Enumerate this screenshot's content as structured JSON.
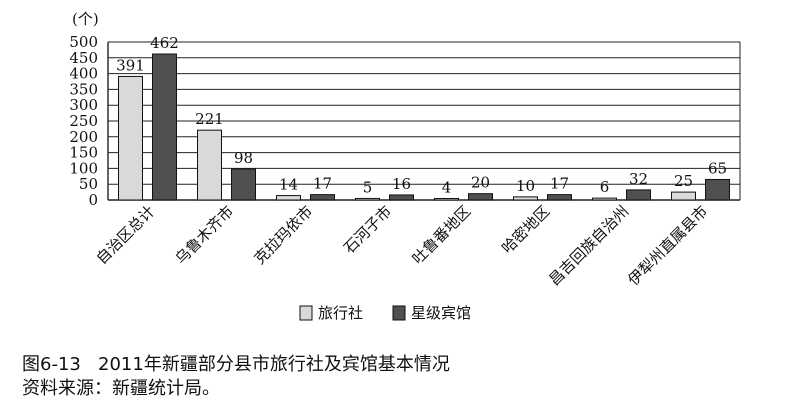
{
  "chart_data": {
    "type": "bar",
    "unit_label": "(个)",
    "categories": [
      "自治区总计",
      "乌鲁木齐市",
      "克拉玛依市",
      "石河子市",
      "吐鲁番地区",
      "哈密地区",
      "昌吉回族自治州",
      "伊犁州直属县市"
    ],
    "series": [
      {
        "name": "旅行社",
        "values": [
          391,
          221,
          14,
          5,
          4,
          10,
          6,
          25
        ],
        "color": "#d9d9d9"
      },
      {
        "name": "星级宾馆",
        "values": [
          462,
          98,
          17,
          16,
          20,
          17,
          32,
          65
        ],
        "color": "#505050"
      }
    ],
    "yticks": [
      0,
      50,
      100,
      150,
      200,
      250,
      300,
      350,
      400,
      450,
      500
    ],
    "ylim": [
      0,
      500
    ],
    "grid": true,
    "legend": "bottom-center"
  },
  "caption": {
    "title": "图6-13   2011年新疆部分县市旅行社及宾馆基本情况",
    "source": "资料来源：新疆统计局。"
  }
}
